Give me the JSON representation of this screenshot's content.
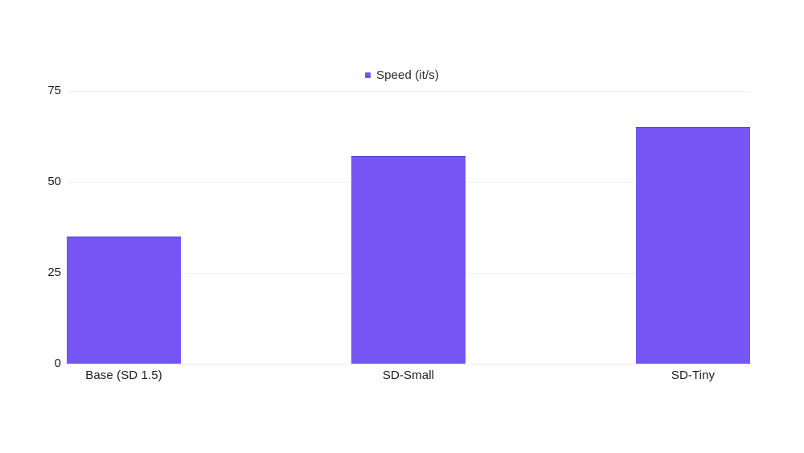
{
  "page": {
    "background": "#ffffff"
  },
  "legend": {
    "label": "Speed (it/s)"
  },
  "colors": {
    "bar_fill": "#7655f5",
    "bar_border_top": "#5438d8",
    "gridline": "#ededed",
    "tick_text": "#1d1d1f",
    "legend_marker": "#7655f5"
  },
  "chart_data": {
    "type": "bar",
    "title": "",
    "xlabel": "",
    "ylabel": "",
    "categories": [
      "Base (SD 1.5)",
      "SD-Small",
      "SD-Tiny"
    ],
    "series": [
      {
        "name": "Speed (it/s)",
        "color": "#7655f5",
        "values": [
          35,
          57,
          65
        ]
      }
    ],
    "ylim": [
      0,
      75
    ],
    "yticks": [
      0,
      25,
      50,
      75
    ],
    "grid": "horizontal",
    "legend_position": "top-center"
  }
}
